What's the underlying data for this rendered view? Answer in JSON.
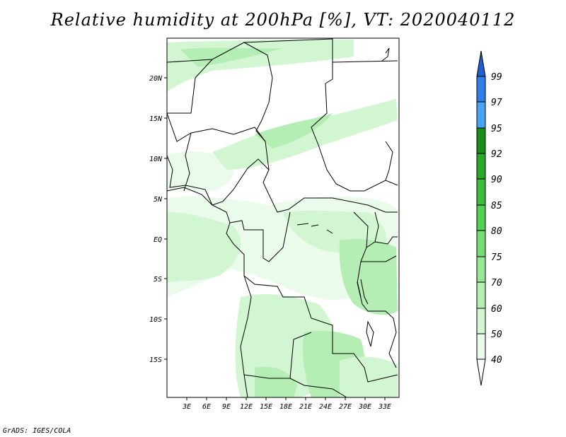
{
  "title": "Relative humidity at 200hPa [%], VT: 2020040112",
  "credit": "GrADS: IGES/COLA",
  "map": {
    "lat_ticks": [
      "20N",
      "15N",
      "10N",
      "5N",
      "EQ",
      "5S",
      "10S",
      "15S"
    ],
    "lon_ticks": [
      "3E",
      "6E",
      "9E",
      "12E",
      "15E",
      "18E",
      "21E",
      "24E",
      "27E",
      "30E",
      "33E"
    ]
  },
  "colorbar": {
    "levels": [
      "99",
      "97",
      "95",
      "92",
      "90",
      "85",
      "80",
      "75",
      "70",
      "60",
      "50",
      "40"
    ],
    "colors": [
      "#1f5fd0",
      "#2f7fe8",
      "#4aa3f0",
      "#1a8c1a",
      "#2aa82a",
      "#3cbc3c",
      "#55d055",
      "#73dc73",
      "#95e695",
      "#b4eeb4",
      "#d2f6d2",
      "#ebfbeb",
      "#ffffff"
    ]
  }
}
